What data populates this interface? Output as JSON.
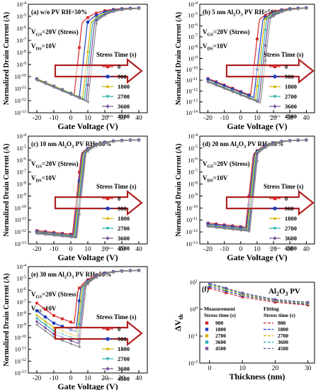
{
  "legend_colors": [
    "#d62728",
    "#1f3fbf",
    "#d4b400",
    "#2ab0b0",
    "#7b4fa0",
    "#8a8a8a"
  ],
  "chart_data": [
    {
      "type": "line",
      "panel_label": "(a)",
      "title": "(a) w/o PV  RH=50%",
      "xlabel": "Gate Voltage (V)",
      "ylabel": "Normalized Drain Current (A)",
      "xlim": [
        -25,
        45
      ],
      "x_ticks": [
        "-20",
        "-10",
        "0",
        "10",
        "20",
        "30",
        "40"
      ],
      "ylim_exp": [
        -13,
        -4
      ],
      "y_ticks": [
        "10-13",
        "10-12",
        "10-11",
        "10-10",
        "10-9",
        "10-8",
        "10-7",
        "10-6",
        "10-5",
        "10-4"
      ],
      "vgs_label": "VGS=20V (Stress)",
      "vds_label": "VDS=10V",
      "legend_title": "Stress Time (s)",
      "series": [
        {
          "name": "0",
          "vth": 2,
          "floor": -11.5
        },
        {
          "name": "900",
          "vth": 5,
          "floor": -11.7
        },
        {
          "name": "1800",
          "vth": 7,
          "floor": -11.8
        },
        {
          "name": "2700",
          "vth": 8,
          "floor": -11.9
        },
        {
          "name": "3600",
          "vth": 9,
          "floor": -12.0
        },
        {
          "name": "4500",
          "vth": 10,
          "floor": -12.1
        }
      ]
    },
    {
      "type": "line",
      "panel_label": "(b)",
      "title": "(b) 5 nm Al2O3 PV  RH=50%",
      "xlabel": "Gate Voltage (V)",
      "ylabel": "Normalized Drain Current (A)",
      "xlim": [
        -25,
        45
      ],
      "x_ticks": [
        "-20",
        "-10",
        "0",
        "10",
        "20",
        "30",
        "40"
      ],
      "ylim_exp": [
        -14,
        -4
      ],
      "y_ticks": [
        "10-14",
        "10-13",
        "10-12",
        "10-11",
        "10-10",
        "10-9",
        "10-8",
        "10-7",
        "10-6",
        "10-5",
        "10-4"
      ],
      "vgs_label": "VGS=20V (Stress)",
      "vds_label": "VDS=10V",
      "legend_title": "Stress Time (s)",
      "series": [
        {
          "name": "0",
          "vth": 6,
          "floor": -12.4
        },
        {
          "name": "900",
          "vth": 8,
          "floor": -12.6
        },
        {
          "name": "1800",
          "vth": 9,
          "floor": -12.8
        },
        {
          "name": "2700",
          "vth": 10,
          "floor": -12.9
        },
        {
          "name": "3600",
          "vth": 11,
          "floor": -13.0
        },
        {
          "name": "4500",
          "vth": 12,
          "floor": -13.1
        }
      ]
    },
    {
      "type": "line",
      "panel_label": "(c)",
      "title": "(c) 10 nm Al2O3 PV  RH=50%",
      "xlabel": "Gate Voltage (V)",
      "ylabel": "Normalized Drain Current (A)",
      "xlim": [
        -25,
        45
      ],
      "x_ticks": [
        "-20",
        "-10",
        "0",
        "10",
        "20",
        "30",
        "40"
      ],
      "ylim_exp": [
        -13,
        -4
      ],
      "y_ticks": [
        "10-13",
        "10-12",
        "10-11",
        "10-10",
        "10-9",
        "10-8",
        "10-7",
        "10-6",
        "10-5",
        "10-4"
      ],
      "vgs_label": "VGS=20V (Stress)",
      "vds_label": "VDS=10V",
      "legend_title": "Stress Time (s)",
      "series": [
        {
          "name": "0",
          "vth": 1,
          "floor": -12.2
        },
        {
          "name": "900",
          "vth": 1.5,
          "floor": -12.3
        },
        {
          "name": "1800",
          "vth": 2,
          "floor": -12.35
        },
        {
          "name": "2700",
          "vth": 2.5,
          "floor": -12.4
        },
        {
          "name": "3600",
          "vth": 3,
          "floor": -12.45
        },
        {
          "name": "4500",
          "vth": 3.5,
          "floor": -12.5
        }
      ]
    },
    {
      "type": "line",
      "panel_label": "(d)",
      "title": "(d) 20 nm Al2O3 PV  RH=50%",
      "xlabel": "Gate Voltage (V)",
      "ylabel": "Normalized Drain Current (A)",
      "xlim": [
        -25,
        45
      ],
      "x_ticks": [
        "-20",
        "-10",
        "0",
        "10",
        "20",
        "30",
        "40"
      ],
      "ylim_exp": [
        -13,
        -4
      ],
      "y_ticks": [
        "10-13",
        "10-12",
        "10-11",
        "10-10",
        "10-9",
        "10-8",
        "10-7",
        "10-6",
        "10-5",
        "10-4"
      ],
      "vgs_label": "VGS=20V (Stress)",
      "vds_label": "VDS=10V",
      "legend_title": "Stress Time (s)",
      "series": [
        {
          "name": "0",
          "vth": 3,
          "floor": -11.6
        },
        {
          "name": "900",
          "vth": 3.5,
          "floor": -11.7
        },
        {
          "name": "1800",
          "vth": 4,
          "floor": -11.8
        },
        {
          "name": "2700",
          "vth": 4.5,
          "floor": -11.85
        },
        {
          "name": "3600",
          "vth": 5,
          "floor": -11.9
        },
        {
          "name": "4500",
          "vth": 5.5,
          "floor": -11.95
        }
      ]
    },
    {
      "type": "line",
      "panel_label": "(e)",
      "title": "(e) 30 nm Al2O3 PV  RH=50%",
      "xlabel": "Gate Voltage (V)",
      "ylabel": "Normalized Drain Current (A)",
      "xlim": [
        -25,
        45
      ],
      "x_ticks": [
        "-20",
        "-10",
        "0",
        "10",
        "20",
        "30",
        "40"
      ],
      "ylim_exp": [
        -13,
        -4
      ],
      "y_ticks": [
        "10-13",
        "10-12",
        "10-11",
        "10-10",
        "10-9",
        "10-8",
        "10-7",
        "10-6",
        "10-5",
        "10-4"
      ],
      "vgs_label": "VGS=20V (Stress)",
      "vds_label": "VDS=10V",
      "legend_title": "Stress Time (s)",
      "series": [
        {
          "name": "0",
          "vth": 2,
          "floor": -8.8
        },
        {
          "name": "900",
          "vth": 3,
          "floor": -9.5
        },
        {
          "name": "1800",
          "vth": 3.5,
          "floor": -9.9
        },
        {
          "name": "2700",
          "vth": 4,
          "floor": -10.2
        },
        {
          "name": "3600",
          "vth": 4.5,
          "floor": -10.5
        },
        {
          "name": "4500",
          "vth": 5,
          "floor": -10.8
        }
      ]
    },
    {
      "type": "scatter",
      "panel_label": "(f)",
      "title": "Al2O3 PV",
      "xlabel": "Thickness (nm)",
      "ylabel": "ΔVth",
      "xlim": [
        -3,
        32
      ],
      "x_ticks": [
        "0",
        "10",
        "20",
        "30"
      ],
      "ylim_exp": [
        -2,
        1
      ],
      "y_ticks": [
        "10-2",
        "10-1",
        "100",
        "101"
      ],
      "legend_measurement_title": "Measurement\nStress time (s)",
      "legend_fitting_title": "Fitting\nStress time (s)",
      "x": [
        0,
        5,
        10,
        20,
        30
      ],
      "series": [
        {
          "name": "900",
          "values": [
            6.0,
            4.0,
            2.8,
            1.8,
            1.4
          ]
        },
        {
          "name": "1800",
          "values": [
            7.0,
            4.7,
            3.2,
            2.0,
            1.5
          ]
        },
        {
          "name": "2700",
          "values": [
            8.0,
            5.3,
            3.5,
            2.1,
            1.6
          ]
        },
        {
          "name": "3600",
          "values": [
            8.5,
            5.7,
            3.8,
            2.2,
            1.7
          ]
        },
        {
          "name": "4500",
          "values": [
            9.2,
            6.1,
            4.0,
            2.3,
            1.8
          ]
        }
      ]
    }
  ]
}
